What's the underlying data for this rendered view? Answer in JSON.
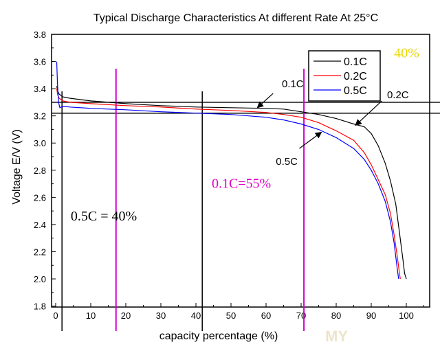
{
  "chart_data": {
    "type": "line",
    "title": "Typical Discharge Characteristics At different Rate At 25°C",
    "xlabel": "capacity percentage (%)",
    "ylabel": "Voltage E/V (V)",
    "xlim": [
      -1,
      108
    ],
    "ylim": [
      1.8,
      3.8
    ],
    "x_ticks": [
      0,
      10,
      20,
      30,
      40,
      50,
      60,
      70,
      80,
      90,
      100
    ],
    "y_ticks": [
      1.8,
      2.0,
      2.2,
      2.4,
      2.6,
      2.8,
      3.0,
      3.2,
      3.4,
      3.6,
      3.8
    ],
    "x_tick_labels": [
      "0",
      "10",
      "20",
      "30",
      "40",
      "50",
      "60",
      "70",
      "80",
      "90",
      "100"
    ],
    "y_tick_labels": [
      "1.8",
      "2.0",
      "2.2",
      "2.4",
      "2.6",
      "2.8",
      "3.0",
      "3.2",
      "3.4",
      "3.6",
      "3.8"
    ],
    "grid": false,
    "legend_position": "top-right",
    "series": [
      {
        "name": "0.1C",
        "color": "#000000",
        "points": [
          [
            0.3,
            3.42
          ],
          [
            0.6,
            3.38
          ],
          [
            1,
            3.36
          ],
          [
            2,
            3.34
          ],
          [
            4,
            3.33
          ],
          [
            10,
            3.31
          ],
          [
            20,
            3.29
          ],
          [
            30,
            3.275
          ],
          [
            40,
            3.265
          ],
          [
            50,
            3.26
          ],
          [
            60,
            3.255
          ],
          [
            65,
            3.25
          ],
          [
            70,
            3.23
          ],
          [
            75,
            3.21
          ],
          [
            80,
            3.18
          ],
          [
            85,
            3.14
          ],
          [
            88,
            3.12
          ],
          [
            90,
            3.07
          ],
          [
            92,
            2.98
          ],
          [
            94,
            2.85
          ],
          [
            95.5,
            2.72
          ],
          [
            97,
            2.55
          ],
          [
            98,
            2.35
          ],
          [
            99,
            2.15
          ],
          [
            99.5,
            2.04
          ],
          [
            100,
            2.0
          ]
        ]
      },
      {
        "name": "0.2C",
        "color": "#ff0000",
        "points": [
          [
            0.3,
            3.4
          ],
          [
            0.6,
            3.35
          ],
          [
            1,
            3.33
          ],
          [
            2,
            3.31
          ],
          [
            4,
            3.3
          ],
          [
            10,
            3.29
          ],
          [
            20,
            3.275
          ],
          [
            30,
            3.265
          ],
          [
            40,
            3.25
          ],
          [
            50,
            3.24
          ],
          [
            60,
            3.225
          ],
          [
            65,
            3.21
          ],
          [
            70,
            3.19
          ],
          [
            75,
            3.15
          ],
          [
            80,
            3.09
          ],
          [
            85,
            3.02
          ],
          [
            88,
            2.93
          ],
          [
            90,
            2.84
          ],
          [
            92,
            2.73
          ],
          [
            94,
            2.62
          ],
          [
            95.5,
            2.48
          ],
          [
            96.5,
            2.33
          ],
          [
            97.5,
            2.15
          ],
          [
            98,
            2.05
          ],
          [
            98.3,
            2.0
          ]
        ]
      },
      {
        "name": "0.5C",
        "color": "#0000ff",
        "points": [
          [
            0.3,
            3.6
          ],
          [
            0.5,
            3.45
          ],
          [
            0.8,
            3.3
          ],
          [
            1.2,
            3.26
          ],
          [
            2,
            3.27
          ],
          [
            4,
            3.265
          ],
          [
            10,
            3.255
          ],
          [
            20,
            3.245
          ],
          [
            30,
            3.23
          ],
          [
            40,
            3.22
          ],
          [
            50,
            3.21
          ],
          [
            60,
            3.19
          ],
          [
            65,
            3.17
          ],
          [
            70,
            3.14
          ],
          [
            75,
            3.1
          ],
          [
            80,
            3.04
          ],
          [
            85,
            2.96
          ],
          [
            88,
            2.88
          ],
          [
            90,
            2.8
          ],
          [
            92,
            2.7
          ],
          [
            94,
            2.57
          ],
          [
            95.5,
            2.42
          ],
          [
            96.5,
            2.27
          ],
          [
            97.3,
            2.1
          ],
          [
            97.8,
            2.0
          ]
        ]
      }
    ],
    "reference_lines": {
      "horizontal_voltages": [
        3.3,
        3.22
      ],
      "vertical_black": [
        1.8,
        41.8
      ],
      "vertical_magenta": [
        17.2,
        70.8
      ]
    },
    "annotations": [
      {
        "text": "0.1C",
        "x": 64.5,
        "y": 3.41,
        "color": "#000000",
        "style": "sans",
        "arrow_from": [
          62,
          3.365
        ],
        "arrow_to": [
          57.5,
          3.26
        ]
      },
      {
        "text": "0.2C",
        "x": 94.5,
        "y": 3.33,
        "color": "#000000",
        "style": "sans",
        "arrow_from": [
          93,
          3.31
        ],
        "arrow_to": [
          85.5,
          3.13
        ]
      },
      {
        "text": "0.5C",
        "x": 62.8,
        "y": 2.84,
        "color": "#000000",
        "style": "sans",
        "arrow_from": [
          69.5,
          2.96
        ],
        "arrow_to": [
          75.8,
          3.08
        ]
      },
      {
        "text": "40%",
        "x": 96.5,
        "y": 3.63,
        "color": "#e8d800",
        "style": "serif"
      },
      {
        "text": "0.1C=55%",
        "x": 44.5,
        "y": 2.67,
        "color": "#e000c8",
        "style": "serif"
      },
      {
        "text": "0.5C = 40%",
        "x": 4.3,
        "y": 2.43,
        "color": "#000000",
        "style": "serif"
      }
    ],
    "watermark": "MY"
  }
}
